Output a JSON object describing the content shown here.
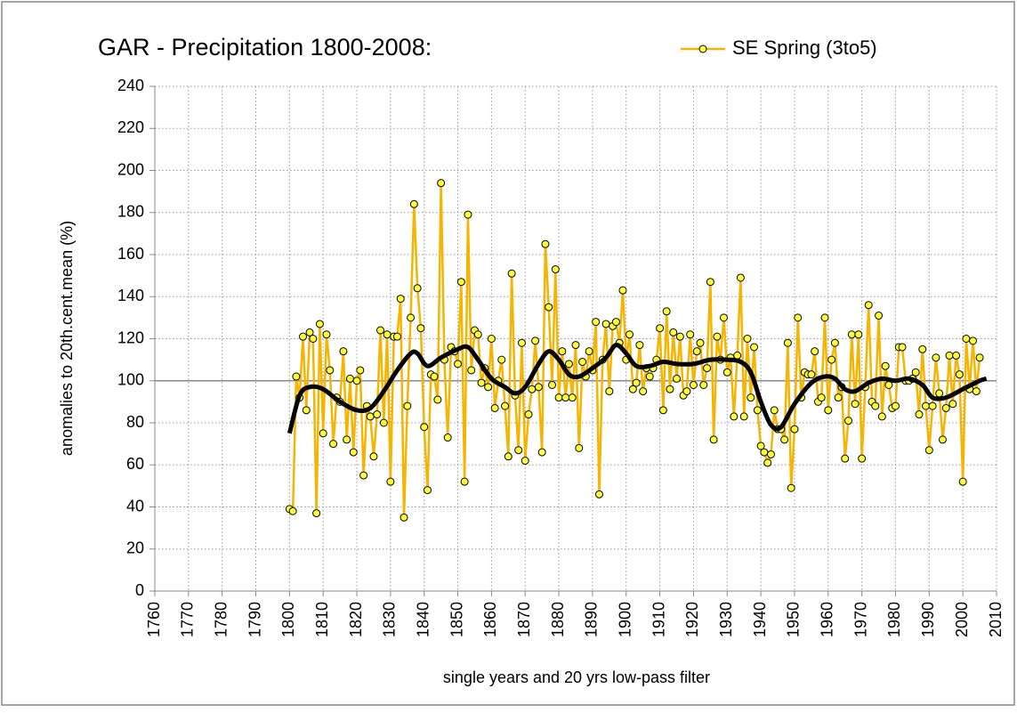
{
  "chart_data": {
    "type": "line",
    "title": "GAR - Precipitation 1800-2008:",
    "xlabel": "single years and 20 yrs low-pass filter",
    "ylabel": "anomalies to 20th.cent.mean (%)",
    "xlim": [
      1760,
      2010
    ],
    "xticks": [
      1760,
      1770,
      1780,
      1790,
      1800,
      1810,
      1820,
      1830,
      1840,
      1850,
      1860,
      1870,
      1880,
      1890,
      1900,
      1910,
      1920,
      1930,
      1940,
      1950,
      1960,
      1970,
      1980,
      1990,
      2000,
      2010
    ],
    "ylim": [
      0,
      240
    ],
    "yticks": [
      0,
      20,
      40,
      60,
      80,
      100,
      120,
      140,
      160,
      180,
      200,
      220,
      240
    ],
    "grid": true,
    "hline": 100,
    "series": [
      {
        "name": "SE Spring (3to5)",
        "color": "#f5b400",
        "markers": true,
        "x": [
          1800,
          1801,
          1802,
          1803,
          1804,
          1805,
          1806,
          1807,
          1808,
          1809,
          1810,
          1811,
          1812,
          1813,
          1814,
          1815,
          1816,
          1817,
          1818,
          1819,
          1820,
          1821,
          1822,
          1823,
          1824,
          1825,
          1826,
          1827,
          1828,
          1829,
          1830,
          1831,
          1832,
          1833,
          1834,
          1835,
          1836,
          1837,
          1838,
          1839,
          1840,
          1841,
          1842,
          1843,
          1844,
          1845,
          1846,
          1847,
          1848,
          1849,
          1850,
          1851,
          1852,
          1853,
          1854,
          1855,
          1856,
          1857,
          1858,
          1859,
          1860,
          1861,
          1862,
          1863,
          1864,
          1865,
          1866,
          1867,
          1868,
          1869,
          1870,
          1871,
          1872,
          1873,
          1874,
          1875,
          1876,
          1877,
          1878,
          1879,
          1880,
          1881,
          1882,
          1883,
          1884,
          1885,
          1886,
          1887,
          1888,
          1889,
          1890,
          1891,
          1892,
          1893,
          1894,
          1895,
          1896,
          1897,
          1898,
          1899,
          1900,
          1901,
          1902,
          1903,
          1904,
          1905,
          1906,
          1907,
          1908,
          1909,
          1910,
          1911,
          1912,
          1913,
          1914,
          1915,
          1916,
          1917,
          1918,
          1919,
          1920,
          1921,
          1922,
          1923,
          1924,
          1925,
          1926,
          1927,
          1928,
          1929,
          1930,
          1931,
          1932,
          1933,
          1934,
          1935,
          1936,
          1937,
          1938,
          1939,
          1940,
          1941,
          1942,
          1943,
          1944,
          1945,
          1946,
          1947,
          1948,
          1949,
          1950,
          1951,
          1952,
          1953,
          1954,
          1955,
          1956,
          1957,
          1958,
          1959,
          1960,
          1961,
          1962,
          1963,
          1964,
          1965,
          1966,
          1967,
          1968,
          1969,
          1970,
          1971,
          1972,
          1973,
          1974,
          1975,
          1976,
          1977,
          1978,
          1979,
          1980,
          1981,
          1982,
          1983,
          1984,
          1985,
          1986,
          1987,
          1988,
          1989,
          1990,
          1991,
          1992,
          1993,
          1994,
          1995,
          1996,
          1997,
          1998,
          1999,
          2000,
          2001,
          2002,
          2003,
          2004,
          2005
        ],
        "values": [
          39,
          38,
          102,
          92,
          121,
          86,
          123,
          120,
          37,
          127,
          75,
          122,
          105,
          70,
          92,
          90,
          114,
          72,
          101,
          66,
          100,
          105,
          55,
          88,
          83,
          64,
          84,
          124,
          80,
          122,
          52,
          121,
          121,
          139,
          35,
          88,
          130,
          184,
          144,
          125,
          78,
          48,
          103,
          102,
          91,
          194,
          110,
          73,
          116,
          114,
          108,
          147,
          52,
          179,
          105,
          124,
          122,
          99,
          106,
          97,
          120,
          87,
          100,
          110,
          88,
          64,
          151,
          93,
          67,
          118,
          62,
          84,
          96,
          119,
          97,
          66,
          165,
          135,
          98,
          153,
          92,
          114,
          92,
          108,
          92,
          117,
          68,
          109,
          102,
          114,
          105,
          128,
          46,
          110,
          127,
          95,
          126,
          128,
          118,
          143,
          110,
          122,
          96,
          99,
          117,
          95,
          106,
          102,
          106,
          110,
          125,
          86,
          133,
          96,
          123,
          101,
          121,
          93,
          95,
          122,
          98,
          114,
          118,
          98,
          106,
          147,
          72,
          121,
          110,
          130,
          104,
          111,
          83,
          112,
          149,
          83,
          120,
          92,
          116,
          86,
          69,
          66,
          61,
          65,
          86,
          77,
          77,
          72,
          118,
          49,
          77,
          130,
          92,
          104,
          103,
          103,
          114,
          90,
          92,
          130,
          86,
          110,
          118,
          92,
          97,
          63,
          81,
          122,
          89,
          122,
          63,
          97,
          136,
          90,
          88,
          131,
          83,
          107,
          98,
          87,
          88,
          116,
          116,
          100,
          100,
          101,
          104,
          84,
          115,
          88,
          67,
          88,
          111,
          94,
          72,
          87,
          112,
          89,
          112,
          103,
          52,
          120,
          96,
          119,
          95,
          111
        ]
      },
      {
        "color": "#000000",
        "smooth": true,
        "x": [
          1800,
          1803,
          1806,
          1810,
          1815,
          1820,
          1824,
          1828,
          1832,
          1836,
          1838,
          1841,
          1845,
          1850,
          1853,
          1856,
          1860,
          1864,
          1867,
          1870,
          1874,
          1877,
          1880,
          1883,
          1886,
          1890,
          1894,
          1897,
          1900,
          1903,
          1907,
          1911,
          1915,
          1920,
          1925,
          1930,
          1934,
          1937,
          1940,
          1943,
          1946,
          1950,
          1955,
          1959,
          1962,
          1965,
          1968,
          1972,
          1976,
          1980,
          1984,
          1988,
          1991,
          1995,
          2000,
          2005,
          2007
        ],
        "values": [
          75,
          93,
          97,
          96,
          90,
          86,
          87,
          95,
          105,
          113,
          113,
          107,
          111,
          115,
          116,
          110,
          101,
          97,
          94,
          97,
          108,
          114,
          110,
          103,
          102,
          106,
          111,
          117,
          113,
          107,
          107,
          109,
          108,
          108,
          110,
          110,
          109,
          104,
          90,
          79,
          78,
          89,
          99,
          102,
          101,
          96,
          95,
          99,
          101,
          100,
          101,
          98,
          92,
          92,
          96,
          100,
          101
        ]
      }
    ]
  }
}
